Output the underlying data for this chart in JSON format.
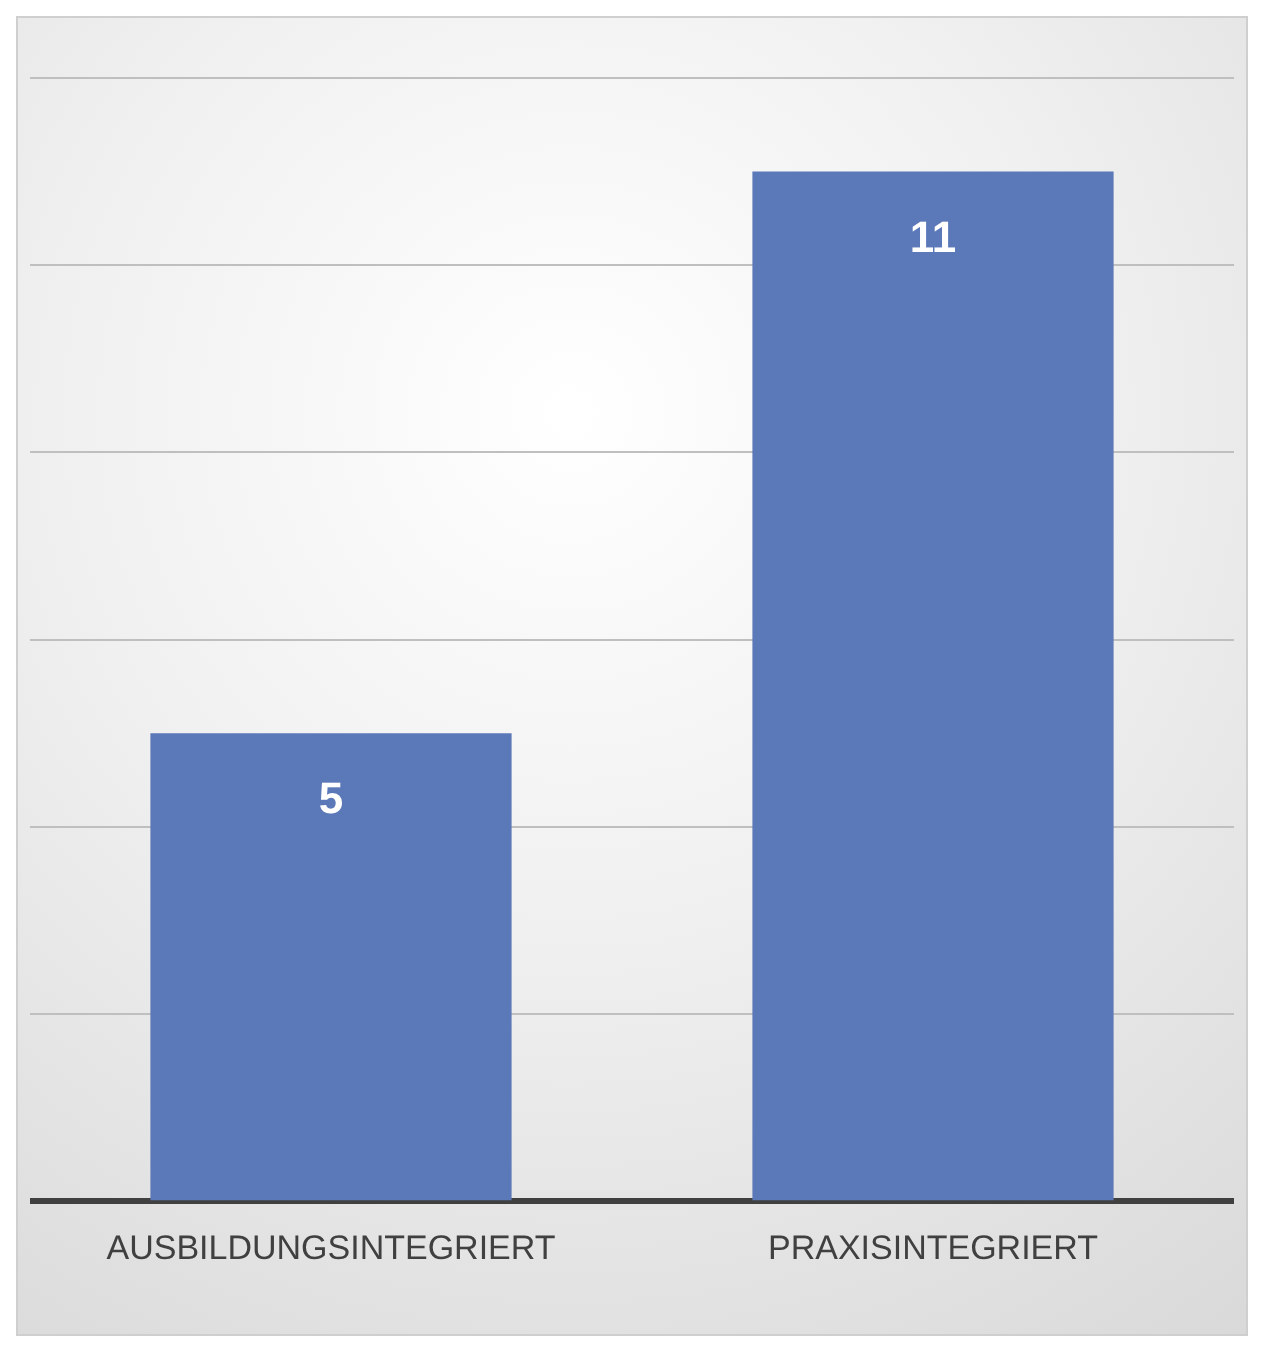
{
  "chart_data": {
    "type": "bar",
    "categories": [
      "AUSBILDUNGSINTEGRIERT",
      "PRAXISINTEGRIERT"
    ],
    "values": [
      5,
      11
    ],
    "color": "#5b78b8",
    "ylim": [
      0,
      12
    ],
    "yticks": [
      {
        "value": 0,
        "label": null
      },
      {
        "value": 2,
        "label": null
      },
      {
        "value": 4,
        "label": null
      },
      {
        "value": 6,
        "label": null
      },
      {
        "value": 8,
        "label": null
      },
      {
        "value": 10,
        "label": null
      },
      {
        "value": 12,
        "label": null
      }
    ],
    "grid": "y",
    "tick_labels": "x",
    "data_labels": true
  }
}
